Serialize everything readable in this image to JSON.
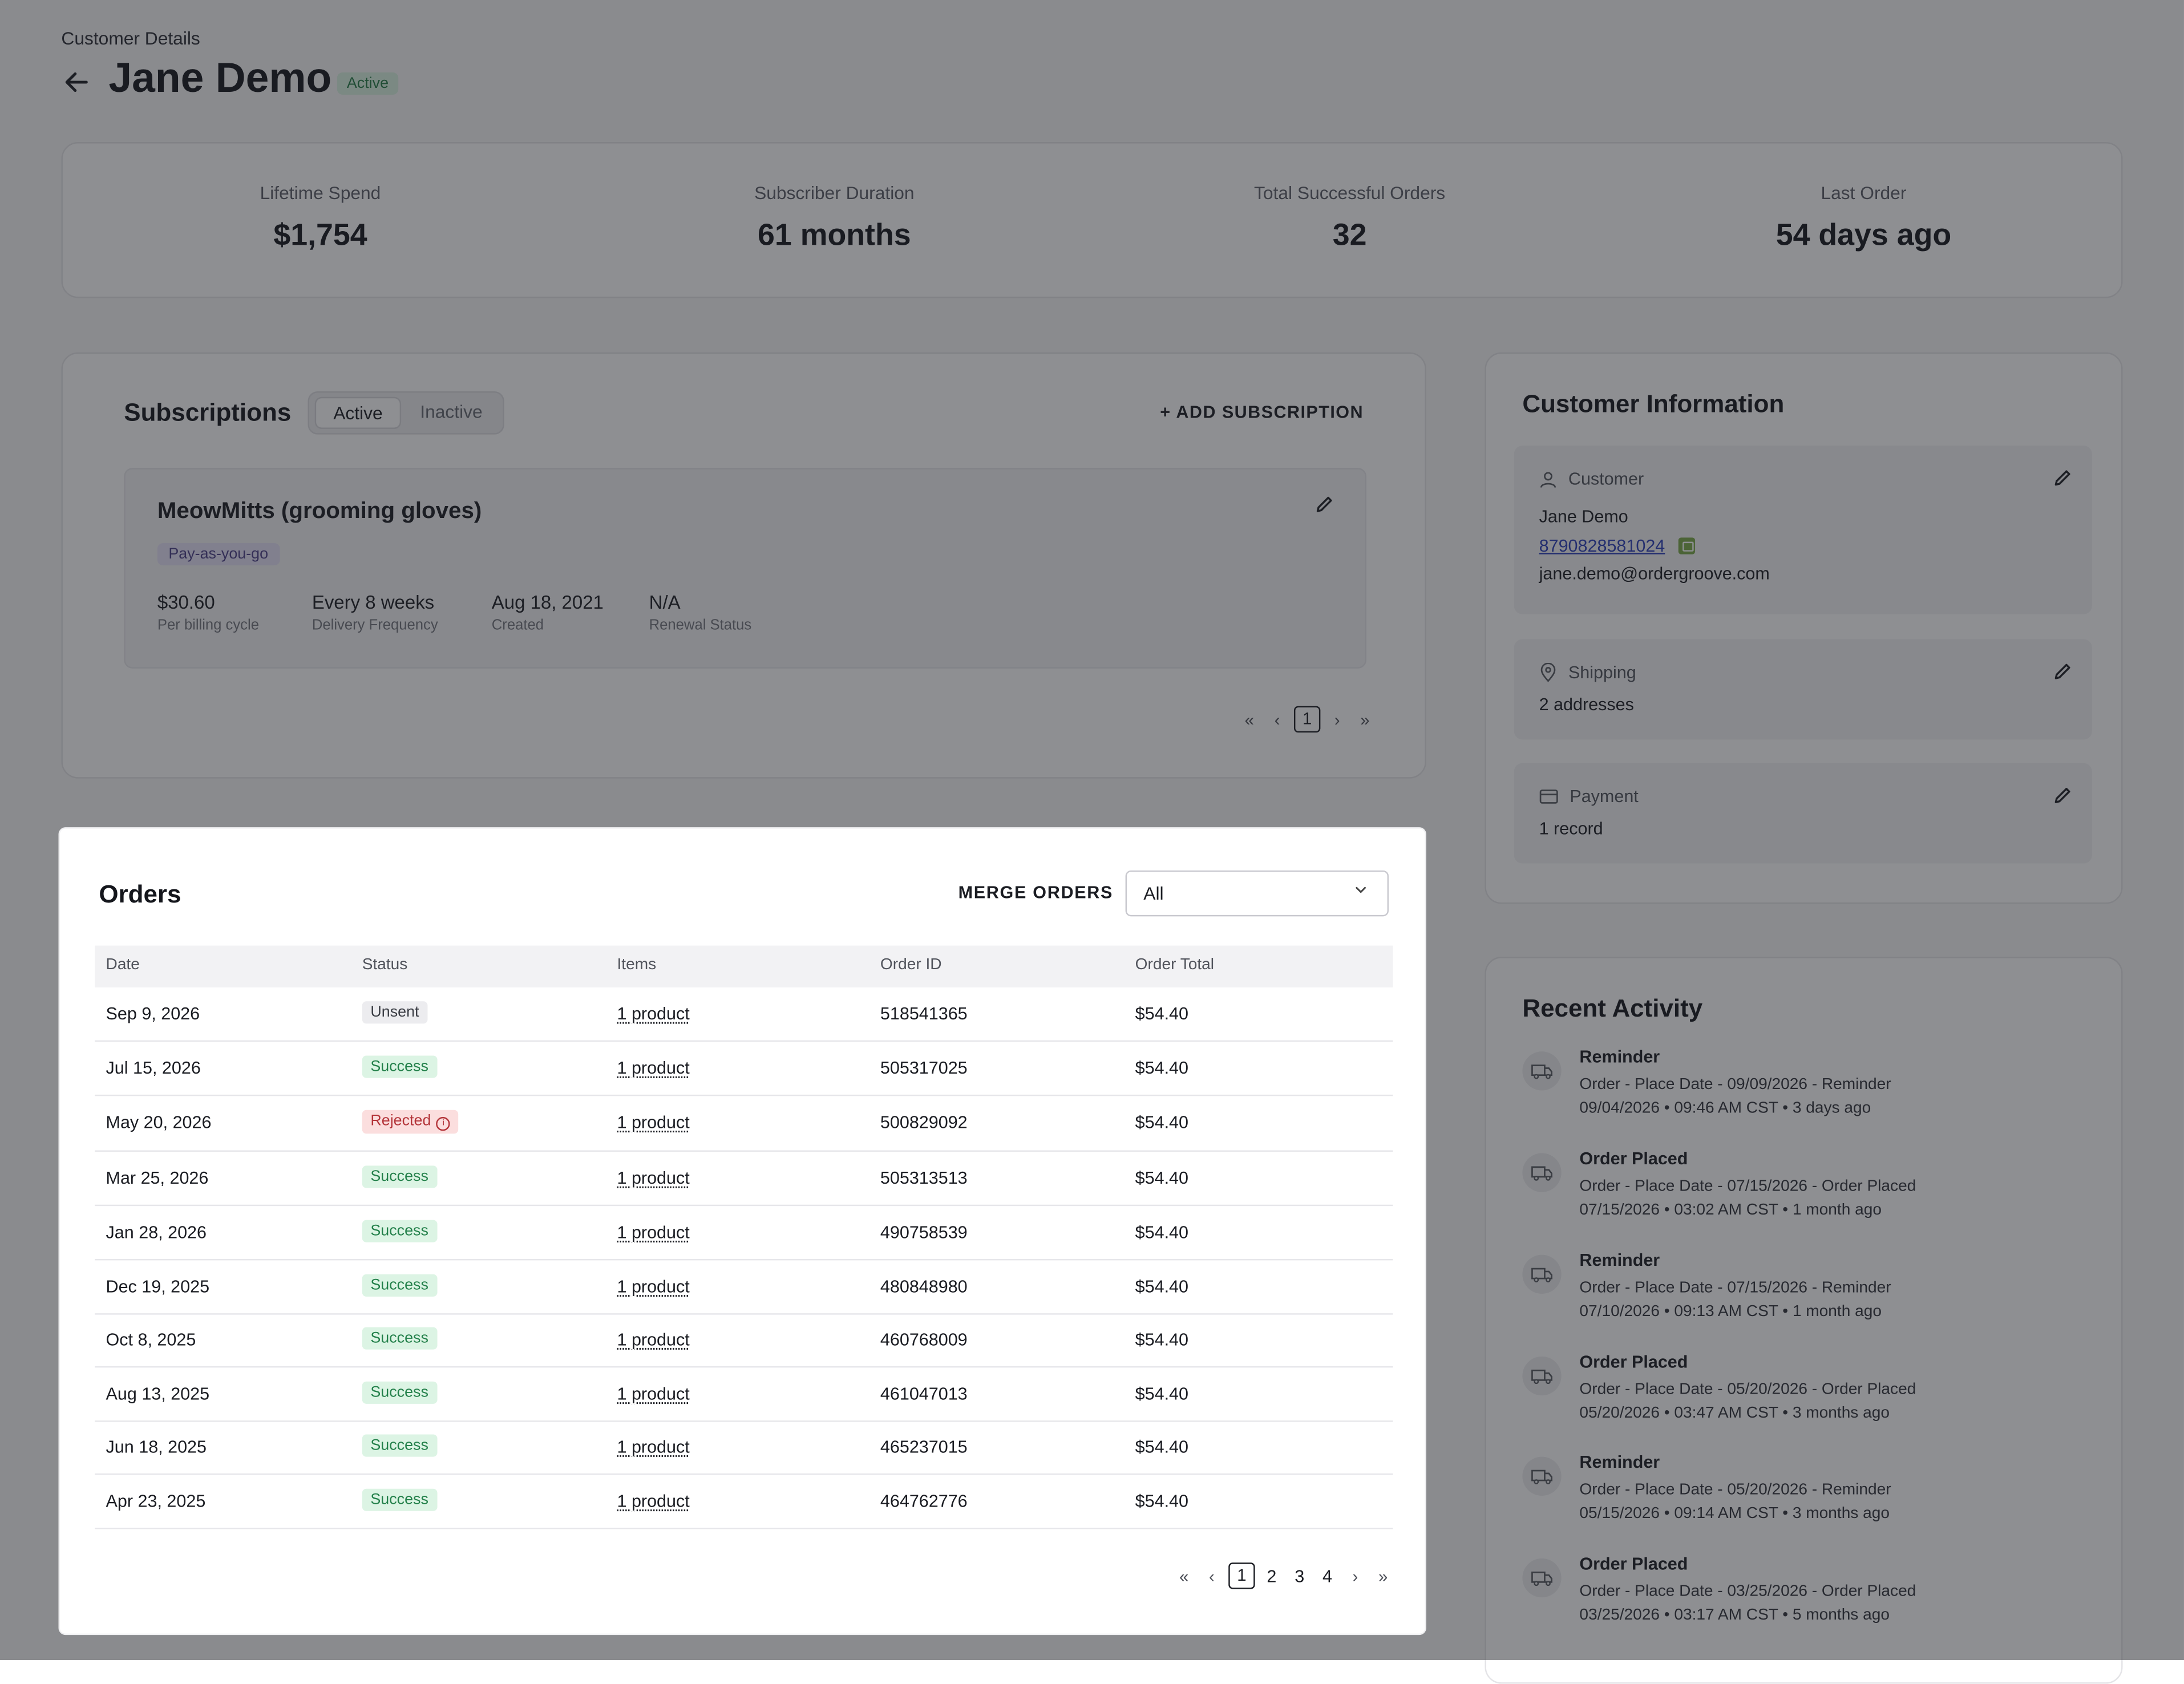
{
  "breadcrumb": "Customer Details",
  "customer_name": "Jane Demo",
  "customer_status": "Active",
  "stats": [
    {
      "label": "Lifetime Spend",
      "value": "$1,754"
    },
    {
      "label": "Subscriber Duration",
      "value": "61 months"
    },
    {
      "label": "Total Successful Orders",
      "value": "32"
    },
    {
      "label": "Last Order",
      "value": "54 days ago"
    }
  ],
  "subscriptions": {
    "title": "Subscriptions",
    "tabs": [
      "Active",
      "Inactive"
    ],
    "add_label": "+ ADD SUBSCRIPTION",
    "card": {
      "name": "MeowMitts (grooming gloves)",
      "plan": "Pay-as-you-go",
      "facts": [
        {
          "value": "$30.60",
          "label": "Per billing cycle"
        },
        {
          "value": "Every 8 weeks",
          "label": "Delivery Frequency"
        },
        {
          "value": "Aug 18, 2021",
          "label": "Created"
        },
        {
          "value": "N/A",
          "label": "Renewal Status"
        }
      ]
    },
    "pager": {
      "first": "«",
      "prev": "‹",
      "current": "1",
      "next": "›",
      "last": "»"
    }
  },
  "customer_info": {
    "title": "Customer Information",
    "customer": {
      "heading": "Customer",
      "name": "Jane Demo",
      "phone": "8790828581024",
      "email": "jane.demo@ordergroove.com"
    },
    "shipping": {
      "heading": "Shipping",
      "summary": "2 addresses"
    },
    "payment": {
      "heading": "Payment",
      "summary": "1 record"
    }
  },
  "recent_activity": {
    "title": "Recent Activity",
    "items": [
      {
        "title": "Reminder",
        "desc": "Order - Place Date - 09/09/2026 - Reminder",
        "meta": "09/04/2026 • 09:46 AM CST • 3 days ago"
      },
      {
        "title": "Order Placed",
        "desc": "Order - Place Date - 07/15/2026 - Order Placed",
        "meta": "07/15/2026 • 03:02 AM CST • 1 month ago"
      },
      {
        "title": "Reminder",
        "desc": "Order - Place Date - 07/15/2026 - Reminder",
        "meta": "07/10/2026 • 09:13 AM CST • 1 month ago"
      },
      {
        "title": "Order Placed",
        "desc": "Order - Place Date - 05/20/2026 - Order Placed",
        "meta": "05/20/2026 • 03:47 AM CST • 3 months ago"
      },
      {
        "title": "Reminder",
        "desc": "Order - Place Date - 05/20/2026 - Reminder",
        "meta": "05/15/2026 • 09:14 AM CST • 3 months ago"
      },
      {
        "title": "Order Placed",
        "desc": "Order - Place Date - 03/25/2026 - Order Placed",
        "meta": "03/25/2026 • 03:17 AM CST • 5 months ago"
      }
    ]
  },
  "orders": {
    "title": "Orders",
    "merge_label": "MERGE ORDERS",
    "filter_value": "All",
    "columns": [
      "Date",
      "Status",
      "Items",
      "Order ID",
      "Order Total"
    ],
    "rows": [
      {
        "date": "Sep 9, 2026",
        "status": "Unsent",
        "items": "1 product",
        "order_id": "518541365",
        "total": "$54.40"
      },
      {
        "date": "Jul 15, 2026",
        "status": "Success",
        "items": "1 product",
        "order_id": "505317025",
        "total": "$54.40"
      },
      {
        "date": "May 20, 2026",
        "status": "Rejected",
        "items": "1 product",
        "order_id": "500829092",
        "total": "$54.40"
      },
      {
        "date": "Mar 25, 2026",
        "status": "Success",
        "items": "1 product",
        "order_id": "505313513",
        "total": "$54.40"
      },
      {
        "date": "Jan 28, 2026",
        "status": "Success",
        "items": "1 product",
        "order_id": "490758539",
        "total": "$54.40"
      },
      {
        "date": "Dec 19, 2025",
        "status": "Success",
        "items": "1 product",
        "order_id": "480848980",
        "total": "$54.40"
      },
      {
        "date": "Oct 8, 2025",
        "status": "Success",
        "items": "1 product",
        "order_id": "460768009",
        "total": "$54.40"
      },
      {
        "date": "Aug 13, 2025",
        "status": "Success",
        "items": "1 product",
        "order_id": "461047013",
        "total": "$54.40"
      },
      {
        "date": "Jun 18, 2025",
        "status": "Success",
        "items": "1 product",
        "order_id": "465237015",
        "total": "$54.40"
      },
      {
        "date": "Apr 23, 2025",
        "status": "Success",
        "items": "1 product",
        "order_id": "464762776",
        "total": "$54.40"
      }
    ],
    "pager": {
      "first": "«",
      "prev": "‹",
      "pages": [
        "1",
        "2",
        "3",
        "4"
      ],
      "current": "1",
      "next": "›",
      "last": "»"
    }
  },
  "colors": {
    "success": "#23804a",
    "rejected": "#b4353a",
    "link": "#2a3fb8",
    "overlay": "rgba(30,32,38,0.50)"
  }
}
